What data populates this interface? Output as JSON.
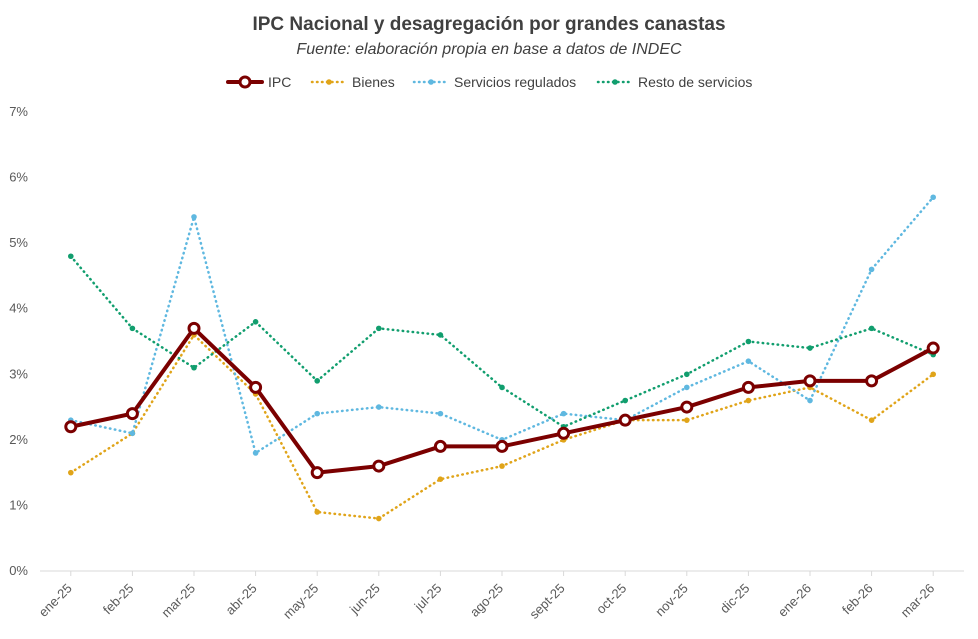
{
  "chart_data": {
    "type": "line",
    "title": "IPC Nacional y desagregación por grandes canastas",
    "subtitle": "Fuente: elaboración propia en base a datos de INDEC",
    "xlabel": "",
    "ylabel": "",
    "ylim": [
      0,
      7
    ],
    "y_ticks": [
      "0%",
      "1%",
      "2%",
      "3%",
      "4%",
      "5%",
      "6%",
      "7%"
    ],
    "grid": false,
    "legend_position": "top-center",
    "categories": [
      "ene-25",
      "feb-25",
      "mar-25",
      "abr-25",
      "may-25",
      "jun-25",
      "jul-25",
      "ago-25",
      "sept-25",
      "oct-25",
      "nov-25",
      "dic-25",
      "ene-26",
      "feb-26",
      "mar-26"
    ],
    "series": [
      {
        "name": "IPC",
        "style": "solid",
        "color": "#7b0000",
        "values": [
          2.2,
          2.4,
          3.7,
          2.8,
          1.5,
          1.6,
          1.9,
          1.9,
          2.1,
          2.3,
          2.5,
          2.8,
          2.9,
          2.9,
          3.4
        ]
      },
      {
        "name": "Bienes",
        "style": "dotted",
        "color": "#e0a419",
        "values": [
          1.5,
          2.1,
          3.6,
          2.7,
          0.9,
          0.8,
          1.4,
          1.6,
          2.0,
          2.3,
          2.3,
          2.6,
          2.8,
          2.3,
          3.0
        ]
      },
      {
        "name": "Servicios regulados",
        "style": "dotted",
        "color": "#5fb8e0",
        "values": [
          2.3,
          2.1,
          5.4,
          1.8,
          2.4,
          2.5,
          2.4,
          2.0,
          2.4,
          2.3,
          2.8,
          3.2,
          2.6,
          4.6,
          5.7
        ]
      },
      {
        "name": "Resto de servicios",
        "style": "dotted",
        "color": "#119e6e",
        "values": [
          4.8,
          3.7,
          3.1,
          3.8,
          2.9,
          3.7,
          3.6,
          2.8,
          2.2,
          2.6,
          3.0,
          3.5,
          3.4,
          3.7,
          3.3
        ]
      }
    ]
  }
}
